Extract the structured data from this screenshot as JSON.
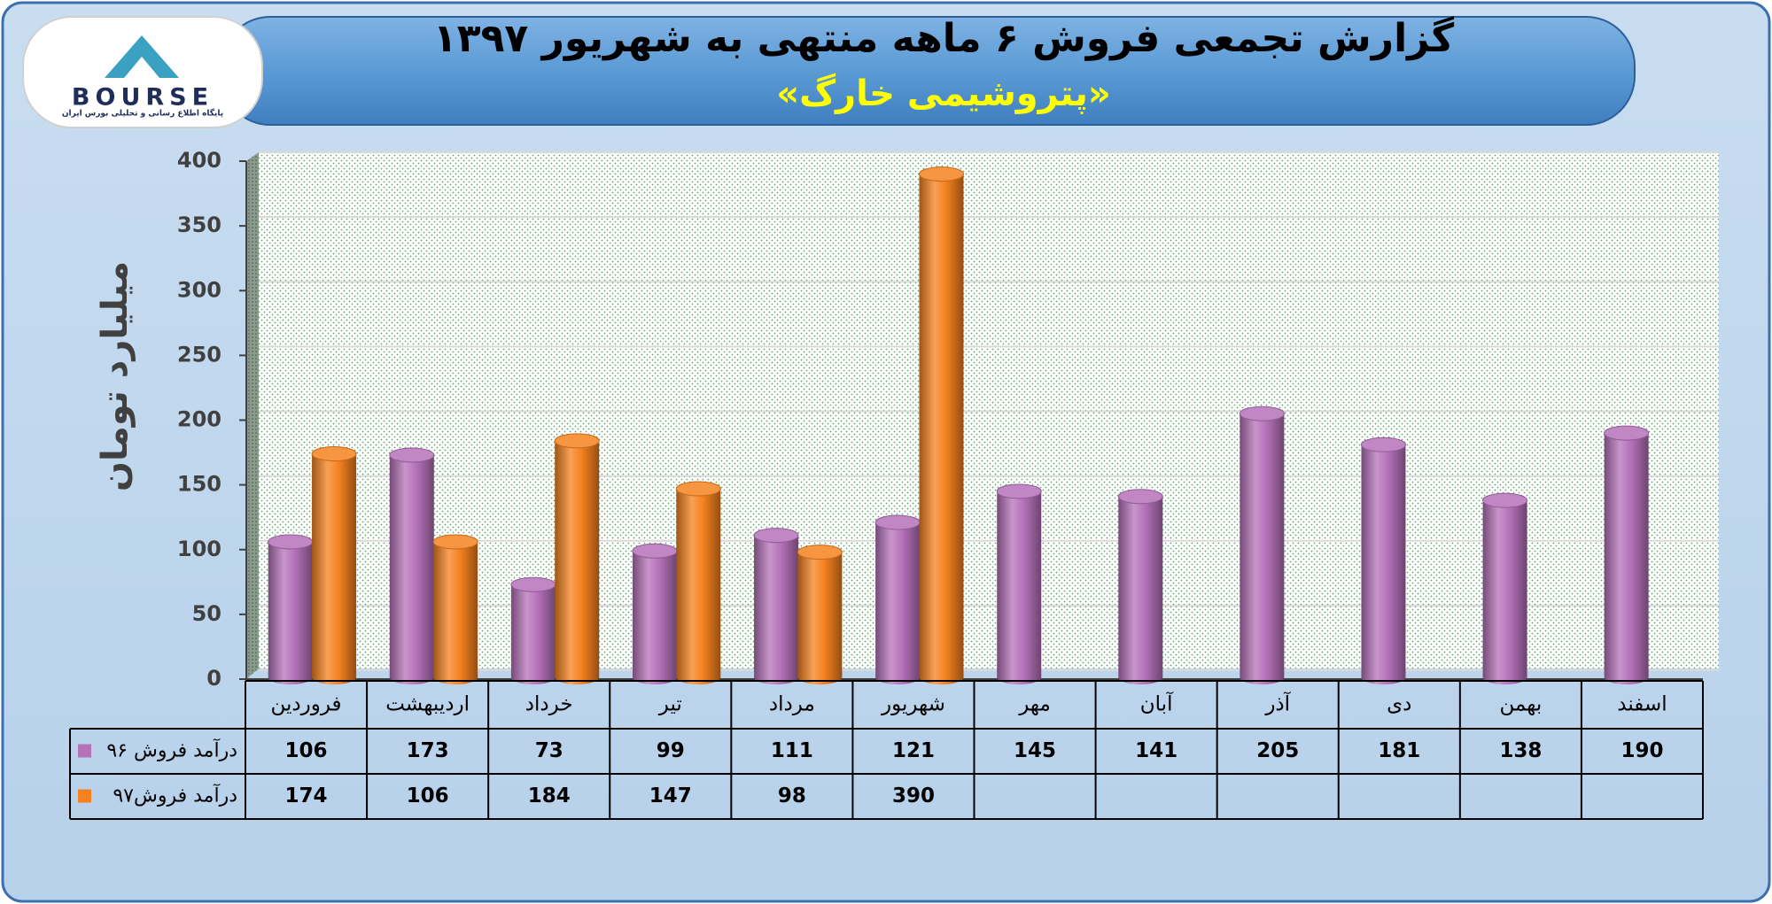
{
  "logo": {
    "text": "BOURSE",
    "tagline": "پایگاه اطلاع رسانی و تحلیلی بورس ایران"
  },
  "chart_data": {
    "type": "bar",
    "title": "گزارش تجمعی فروش ۶ ماهه منتهی به شهریور ۱۳۹۷",
    "subtitle": "«پتروشیمی خارگ»",
    "y_label": "میلیارد تومان",
    "categories": [
      "فروردین",
      "اردیبهشت",
      "خرداد",
      "تیر",
      "مرداد",
      "شهریور",
      "مهر",
      "آبان",
      "آذر",
      "دی",
      "بهمن",
      "اسفند"
    ],
    "series": [
      {
        "name": "درآمد فروش ۹۶",
        "color": "#b572ba",
        "values": [
          106,
          173,
          73,
          99,
          111,
          121,
          145,
          141,
          205,
          181,
          138,
          190
        ]
      },
      {
        "name": "درآمد فروش۹۷",
        "color": "#f5821f",
        "values": [
          174,
          106,
          184,
          147,
          98,
          390,
          null,
          null,
          null,
          null,
          null,
          null
        ]
      }
    ],
    "ylim": [
      0,
      400
    ],
    "yticks": [
      0,
      50,
      100,
      150,
      200,
      250,
      300,
      350,
      400
    ],
    "grid": true,
    "data_table": true
  }
}
